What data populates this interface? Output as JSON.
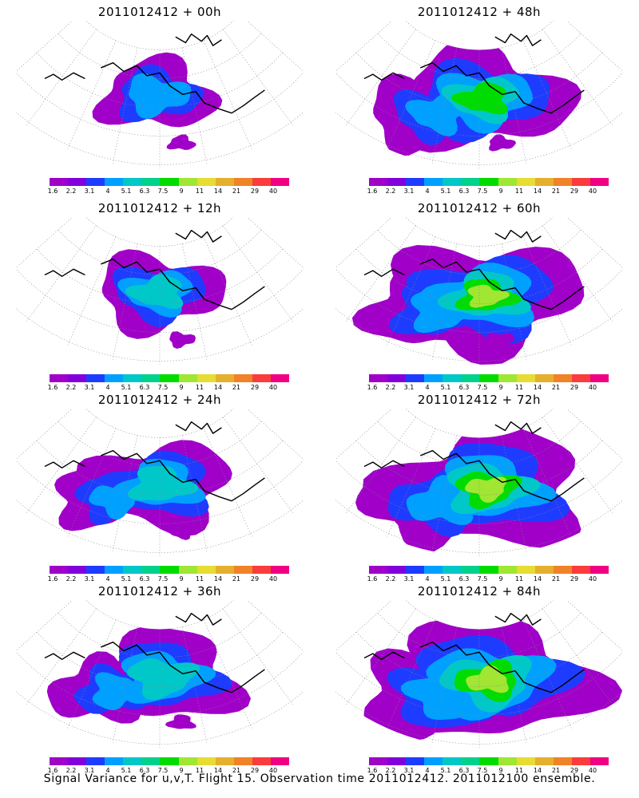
{
  "panels": [
    {
      "title": "2011012412 + 00h"
    },
    {
      "title": "2011012412 + 48h"
    },
    {
      "title": "2011012412 + 12h"
    },
    {
      "title": "2011012412 + 60h"
    },
    {
      "title": "2011012412 + 24h"
    },
    {
      "title": "2011012412 + 72h"
    },
    {
      "title": "2011012412 + 36h"
    },
    {
      "title": "2011012412 + 84h"
    }
  ],
  "legend": {
    "labels": [
      "1.6",
      "2.2",
      "3.1",
      "4",
      "5.1",
      "6.3",
      "7.5",
      "9",
      "11",
      "14",
      "21",
      "29",
      "40"
    ],
    "colors": [
      "#a000c8",
      "#8200dc",
      "#1e3cff",
      "#00a0ff",
      "#00c8c8",
      "#00d28c",
      "#00dc00",
      "#a0e632",
      "#e6dc32",
      "#e6af2d",
      "#f08228",
      "#fa3c3c",
      "#f00082"
    ]
  },
  "caption": "Signal Variance for u,v,T. Flight 15. Observation time 2011012412. 2011012100 ensemble.",
  "panel_intensity": [
    0.6,
    1.6,
    0.8,
    1.9,
    1.1,
    2.1,
    1.3,
    2.3
  ]
}
